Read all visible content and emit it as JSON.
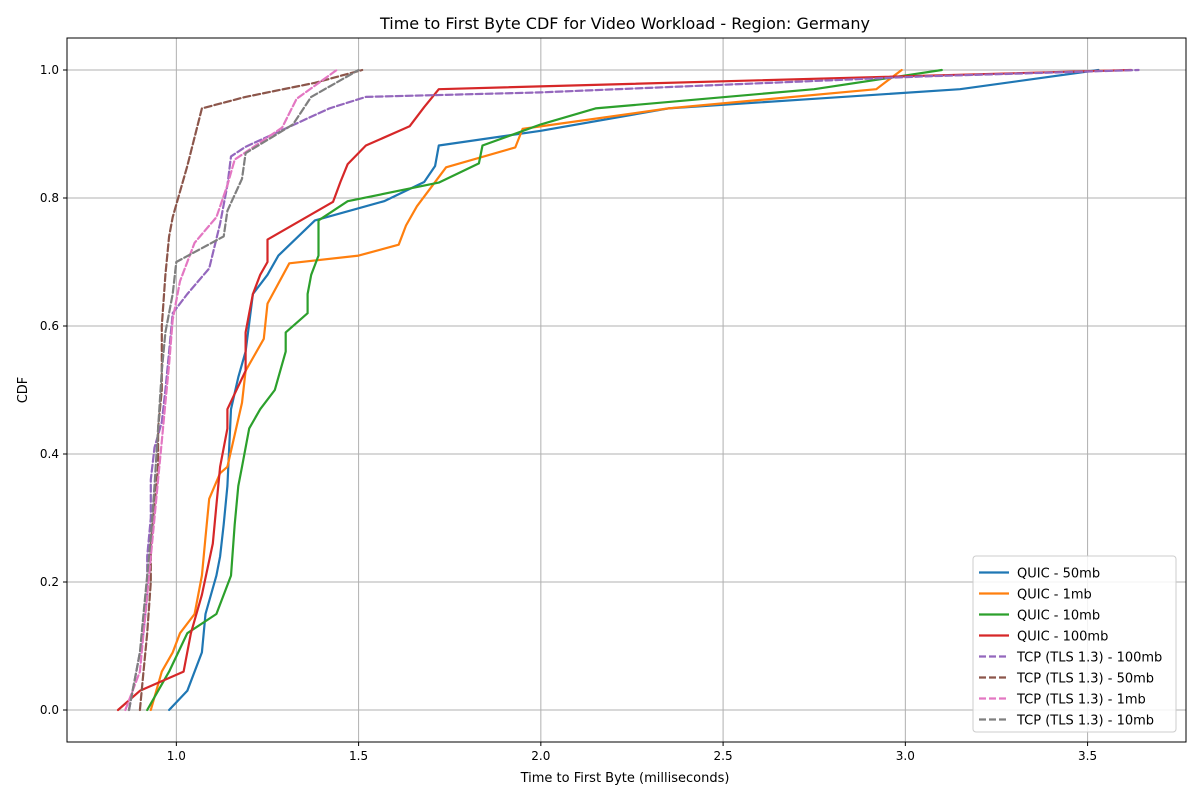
{
  "chart_data": {
    "type": "line",
    "title": "Time to First Byte CDF for Video Workload - Region: Germany",
    "xlabel": "Time to First Byte (milliseconds)",
    "ylabel": "CDF",
    "xlim": [
      0.7,
      3.77
    ],
    "ylim": [
      -0.05,
      1.05
    ],
    "x_ticks": [
      1.0,
      1.5,
      2.0,
      2.5,
      3.0,
      3.5
    ],
    "x_tick_labels": [
      "1.0",
      "1.5",
      "2.0",
      "2.5",
      "3.0",
      "3.5"
    ],
    "y_ticks": [
      0.0,
      0.2,
      0.4,
      0.6,
      0.8,
      1.0
    ],
    "y_tick_labels": [
      "0.0",
      "0.2",
      "0.4",
      "0.6",
      "0.8",
      "1.0"
    ],
    "grid": true,
    "legend_position": "lower-right",
    "series": [
      {
        "name": "QUIC - 50mb",
        "color": "#1f77b4",
        "style": "solid",
        "points": [
          [
            0.98,
            0.0
          ],
          [
            1.03,
            0.03
          ],
          [
            1.07,
            0.09
          ],
          [
            1.08,
            0.15
          ],
          [
            1.11,
            0.21
          ],
          [
            1.12,
            0.24
          ],
          [
            1.13,
            0.29
          ],
          [
            1.14,
            0.35
          ],
          [
            1.15,
            0.47
          ],
          [
            1.17,
            0.52
          ],
          [
            1.19,
            0.56
          ],
          [
            1.21,
            0.65
          ],
          [
            1.25,
            0.68
          ],
          [
            1.28,
            0.71
          ],
          [
            1.38,
            0.765
          ],
          [
            1.57,
            0.795
          ],
          [
            1.68,
            0.825
          ],
          [
            1.71,
            0.85
          ],
          [
            1.72,
            0.882
          ],
          [
            2.0,
            0.905
          ],
          [
            2.35,
            0.94
          ],
          [
            2.75,
            0.955
          ],
          [
            3.15,
            0.97
          ],
          [
            3.53,
            1.0
          ]
        ]
      },
      {
        "name": "QUIC - 1mb",
        "color": "#ff7f0e",
        "style": "solid",
        "points": [
          [
            0.93,
            0.0
          ],
          [
            0.96,
            0.06
          ],
          [
            0.99,
            0.09
          ],
          [
            1.01,
            0.12
          ],
          [
            1.05,
            0.15
          ],
          [
            1.07,
            0.21
          ],
          [
            1.08,
            0.27
          ],
          [
            1.09,
            0.33
          ],
          [
            1.12,
            0.37
          ],
          [
            1.14,
            0.38
          ],
          [
            1.16,
            0.43
          ],
          [
            1.18,
            0.48
          ],
          [
            1.19,
            0.53
          ],
          [
            1.21,
            0.55
          ],
          [
            1.24,
            0.58
          ],
          [
            1.25,
            0.635
          ],
          [
            1.31,
            0.698
          ],
          [
            1.5,
            0.71
          ],
          [
            1.61,
            0.727
          ],
          [
            1.63,
            0.757
          ],
          [
            1.66,
            0.787
          ],
          [
            1.74,
            0.848
          ],
          [
            1.93,
            0.879
          ],
          [
            1.95,
            0.908
          ],
          [
            2.35,
            0.94
          ],
          [
            2.92,
            0.97
          ],
          [
            2.99,
            1.0
          ]
        ]
      },
      {
        "name": "QUIC - 10mb",
        "color": "#2ca02c",
        "style": "solid",
        "points": [
          [
            0.92,
            0.0
          ],
          [
            0.95,
            0.03
          ],
          [
            0.98,
            0.06
          ],
          [
            1.03,
            0.12
          ],
          [
            1.11,
            0.15
          ],
          [
            1.15,
            0.21
          ],
          [
            1.16,
            0.29
          ],
          [
            1.17,
            0.35
          ],
          [
            1.18,
            0.38
          ],
          [
            1.2,
            0.44
          ],
          [
            1.23,
            0.47
          ],
          [
            1.27,
            0.5
          ],
          [
            1.3,
            0.56
          ],
          [
            1.3,
            0.59
          ],
          [
            1.36,
            0.62
          ],
          [
            1.36,
            0.65
          ],
          [
            1.37,
            0.68
          ],
          [
            1.39,
            0.71
          ],
          [
            1.39,
            0.765
          ],
          [
            1.47,
            0.795
          ],
          [
            1.72,
            0.824
          ],
          [
            1.83,
            0.854
          ],
          [
            1.84,
            0.882
          ],
          [
            2.0,
            0.915
          ],
          [
            2.15,
            0.94
          ],
          [
            2.75,
            0.97
          ],
          [
            3.1,
            1.0
          ]
        ]
      },
      {
        "name": "QUIC - 100mb",
        "color": "#d62728",
        "style": "solid",
        "points": [
          [
            0.84,
            0.0
          ],
          [
            0.9,
            0.03
          ],
          [
            1.02,
            0.06
          ],
          [
            1.04,
            0.12
          ],
          [
            1.07,
            0.18
          ],
          [
            1.1,
            0.26
          ],
          [
            1.11,
            0.32
          ],
          [
            1.12,
            0.38
          ],
          [
            1.14,
            0.44
          ],
          [
            1.14,
            0.47
          ],
          [
            1.19,
            0.53
          ],
          [
            1.19,
            0.59
          ],
          [
            1.2,
            0.62
          ],
          [
            1.21,
            0.65
          ],
          [
            1.23,
            0.68
          ],
          [
            1.25,
            0.7
          ],
          [
            1.25,
            0.735
          ],
          [
            1.43,
            0.794
          ],
          [
            1.45,
            0.825
          ],
          [
            1.47,
            0.853
          ],
          [
            1.52,
            0.882
          ],
          [
            1.64,
            0.912
          ],
          [
            1.68,
            0.942
          ],
          [
            1.72,
            0.97
          ],
          [
            3.62,
            1.0
          ]
        ]
      },
      {
        "name": "TCP (TLS 1.3) - 100mb",
        "color": "#9467bd",
        "style": "dashed",
        "points": [
          [
            0.87,
            0.0
          ],
          [
            0.88,
            0.03
          ],
          [
            0.89,
            0.06
          ],
          [
            0.91,
            0.12
          ],
          [
            0.92,
            0.18
          ],
          [
            0.92,
            0.24
          ],
          [
            0.93,
            0.3
          ],
          [
            0.93,
            0.36
          ],
          [
            0.94,
            0.41
          ],
          [
            0.96,
            0.45
          ],
          [
            0.97,
            0.5
          ],
          [
            0.98,
            0.56
          ],
          [
            0.99,
            0.62
          ],
          [
            1.03,
            0.65
          ],
          [
            1.09,
            0.69
          ],
          [
            1.12,
            0.76
          ],
          [
            1.14,
            0.82
          ],
          [
            1.15,
            0.865
          ],
          [
            1.19,
            0.88
          ],
          [
            1.42,
            0.94
          ],
          [
            1.52,
            0.958
          ],
          [
            2.0,
            0.965
          ],
          [
            3.05,
            0.99
          ],
          [
            3.64,
            1.0
          ]
        ]
      },
      {
        "name": "TCP (TLS 1.3) - 50mb",
        "color": "#8c564b",
        "style": "dashed",
        "points": [
          [
            0.9,
            0.0
          ],
          [
            0.91,
            0.06
          ],
          [
            0.92,
            0.12
          ],
          [
            0.93,
            0.2
          ],
          [
            0.93,
            0.26
          ],
          [
            0.94,
            0.32
          ],
          [
            0.95,
            0.38
          ],
          [
            0.95,
            0.44
          ],
          [
            0.96,
            0.5
          ],
          [
            0.96,
            0.6
          ],
          [
            0.97,
            0.68
          ],
          [
            0.98,
            0.74
          ],
          [
            0.99,
            0.77
          ],
          [
            1.03,
            0.85
          ],
          [
            1.07,
            0.94
          ],
          [
            1.19,
            0.958
          ],
          [
            1.38,
            0.98
          ],
          [
            1.51,
            1.0
          ]
        ]
      },
      {
        "name": "TCP (TLS 1.3) - 1mb",
        "color": "#e377c2",
        "style": "dashed",
        "points": [
          [
            0.86,
            0.0
          ],
          [
            0.88,
            0.03
          ],
          [
            0.9,
            0.06
          ],
          [
            0.91,
            0.12
          ],
          [
            0.92,
            0.18
          ],
          [
            0.93,
            0.24
          ],
          [
            0.94,
            0.3
          ],
          [
            0.95,
            0.36
          ],
          [
            0.96,
            0.42
          ],
          [
            0.97,
            0.48
          ],
          [
            0.98,
            0.54
          ],
          [
            0.99,
            0.61
          ],
          [
            1.01,
            0.67
          ],
          [
            1.05,
            0.73
          ],
          [
            1.11,
            0.77
          ],
          [
            1.14,
            0.82
          ],
          [
            1.16,
            0.86
          ],
          [
            1.29,
            0.91
          ],
          [
            1.33,
            0.955
          ],
          [
            1.44,
            1.0
          ]
        ]
      },
      {
        "name": "TCP (TLS 1.3) - 10mb",
        "color": "#7f7f7f",
        "style": "dashed",
        "points": [
          [
            0.87,
            0.0
          ],
          [
            0.88,
            0.03
          ],
          [
            0.89,
            0.06
          ],
          [
            0.9,
            0.09
          ],
          [
            0.91,
            0.15
          ],
          [
            0.92,
            0.21
          ],
          [
            0.93,
            0.27
          ],
          [
            0.94,
            0.35
          ],
          [
            0.95,
            0.44
          ],
          [
            0.96,
            0.53
          ],
          [
            0.97,
            0.59
          ],
          [
            0.99,
            0.65
          ],
          [
            1.0,
            0.7
          ],
          [
            1.13,
            0.74
          ],
          [
            1.14,
            0.78
          ],
          [
            1.18,
            0.83
          ],
          [
            1.19,
            0.87
          ],
          [
            1.32,
            0.915
          ],
          [
            1.37,
            0.958
          ],
          [
            1.5,
            1.0
          ]
        ]
      }
    ]
  }
}
